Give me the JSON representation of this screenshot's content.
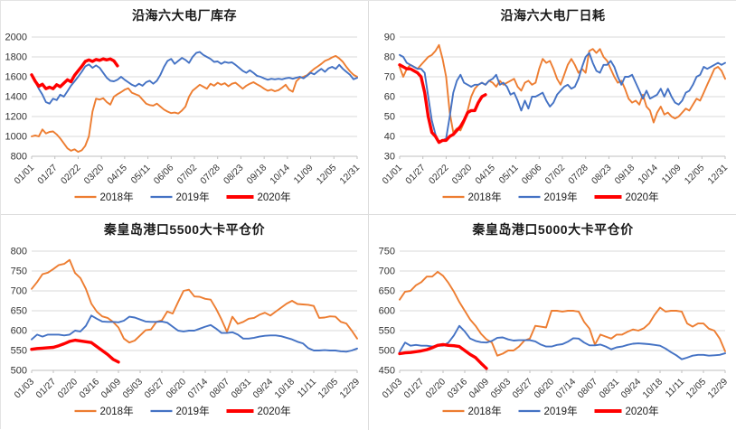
{
  "page": {
    "background": "#ffffff"
  },
  "colors": {
    "s2018": "#ED7D31",
    "s2019": "#4472C4",
    "s2020": "#FF0000",
    "gridline": "#d9d9d9",
    "axisline": "#bfbfbf",
    "axis_text": "#333333",
    "title_text": "#1a1a1a"
  },
  "chart_data": [
    {
      "type": "line",
      "title": "沿海六大电厂库存",
      "grid": true,
      "legend_position": "bottom",
      "ylim": [
        800,
        2000
      ],
      "y_step": 200,
      "x_domain": [
        0,
        364
      ],
      "x_tick_days": [
        0,
        26,
        52,
        78,
        104,
        130,
        156,
        182,
        208,
        234,
        260,
        286,
        312,
        338,
        364
      ],
      "x_tick_labels": [
        "01/01",
        "01/27",
        "02/22",
        "03/20",
        "04/15",
        "05/11",
        "06/06",
        "07/02",
        "07/28",
        "08/23",
        "09/18",
        "10/14",
        "11/09",
        "12/05",
        "12/31"
      ],
      "series": [
        {
          "name": "2018年",
          "color_key": "s2018",
          "step": 4,
          "values": [
            1000,
            1010,
            1000,
            1070,
            1030,
            1045,
            1050,
            1020,
            980,
            930,
            880,
            855,
            870,
            845,
            860,
            905,
            1000,
            1250,
            1380,
            1370,
            1385,
            1345,
            1320,
            1400,
            1425,
            1445,
            1470,
            1485,
            1440,
            1425,
            1410,
            1370,
            1330,
            1315,
            1310,
            1330,
            1300,
            1270,
            1250,
            1235,
            1240,
            1230,
            1260,
            1300,
            1400,
            1460,
            1490,
            1520,
            1500,
            1480,
            1530,
            1510,
            1540,
            1520,
            1535,
            1505,
            1530,
            1540,
            1510,
            1480,
            1510,
            1530,
            1545,
            1525,
            1505,
            1480,
            1460,
            1470,
            1455,
            1465,
            1490,
            1520,
            1470,
            1450,
            1555,
            1590,
            1600,
            1615,
            1650,
            1680,
            1705,
            1730,
            1760,
            1775,
            1795,
            1810,
            1785,
            1750,
            1700,
            1655,
            1620,
            1600
          ]
        },
        {
          "name": "2019年",
          "color_key": "s2019",
          "step": 4,
          "values": [
            1615,
            1550,
            1480,
            1420,
            1345,
            1330,
            1380,
            1365,
            1420,
            1400,
            1455,
            1510,
            1555,
            1600,
            1650,
            1705,
            1725,
            1690,
            1715,
            1690,
            1640,
            1590,
            1560,
            1555,
            1570,
            1600,
            1570,
            1545,
            1520,
            1505,
            1530,
            1510,
            1545,
            1560,
            1530,
            1560,
            1620,
            1700,
            1760,
            1780,
            1730,
            1760,
            1790,
            1770,
            1740,
            1800,
            1840,
            1850,
            1820,
            1800,
            1780,
            1750,
            1755,
            1730,
            1750,
            1740,
            1745,
            1720,
            1690,
            1660,
            1640,
            1665,
            1640,
            1610,
            1600,
            1585,
            1570,
            1580,
            1575,
            1580,
            1575,
            1585,
            1590,
            1580,
            1590,
            1600,
            1585,
            1610,
            1640,
            1625,
            1655,
            1680,
            1650,
            1685,
            1700,
            1680,
            1720,
            1680,
            1650,
            1620,
            1575,
            1590
          ]
        },
        {
          "name": "2020年",
          "color_key": "s2020",
          "step": 4,
          "thick": true,
          "values": [
            1620,
            1555,
            1505,
            1525,
            1480,
            1495,
            1480,
            1520,
            1500,
            1535,
            1570,
            1550,
            1615,
            1660,
            1705,
            1755,
            1770,
            1755,
            1775,
            1765,
            1780,
            1770,
            1780,
            1760,
            1710
          ]
        }
      ]
    },
    {
      "type": "line",
      "title": "沿海六大电厂日耗",
      "grid": true,
      "legend_position": "bottom",
      "ylim": [
        30,
        90
      ],
      "y_step": 10,
      "x_domain": [
        0,
        364
      ],
      "x_tick_days": [
        0,
        26,
        52,
        78,
        104,
        130,
        156,
        182,
        208,
        234,
        260,
        286,
        312,
        338,
        364
      ],
      "x_tick_labels": [
        "01/01",
        "01/27",
        "02/22",
        "03/20",
        "04/15",
        "05/11",
        "06/06",
        "07/02",
        "07/28",
        "08/23",
        "09/18",
        "10/14",
        "11/09",
        "12/05",
        "12/31"
      ],
      "series": [
        {
          "name": "2018年",
          "color_key": "s2018",
          "step": 4,
          "values": [
            75,
            70,
            74,
            76,
            75,
            74,
            76,
            78,
            80,
            81,
            83,
            86,
            79,
            70,
            52,
            42,
            44,
            43,
            47,
            53,
            60,
            64,
            66,
            67,
            66,
            68,
            67,
            65,
            68,
            66,
            67,
            68,
            69,
            65,
            63,
            67,
            68,
            66,
            67,
            74,
            79,
            77,
            78,
            74,
            69,
            66,
            71,
            76,
            79,
            76,
            72,
            74,
            72,
            83,
            84,
            82,
            84,
            80,
            78,
            74,
            70,
            67,
            68,
            64,
            59,
            57,
            58,
            56,
            61,
            55,
            53,
            47,
            52,
            55,
            51,
            52,
            50,
            49,
            50,
            52,
            54,
            53,
            56,
            59,
            58,
            62,
            66,
            70,
            74,
            75,
            73,
            69
          ]
        },
        {
          "name": "2019年",
          "color_key": "s2019",
          "step": 4,
          "values": [
            81,
            80,
            77,
            76,
            75,
            74,
            74,
            72,
            60,
            48,
            41,
            37,
            38,
            39,
            50,
            62,
            68,
            71,
            67,
            66,
            65,
            66,
            66,
            67,
            66,
            68,
            69,
            71,
            66,
            67,
            65,
            61,
            62,
            58,
            53,
            58,
            54,
            60,
            60,
            61,
            62,
            58,
            55,
            57,
            61,
            63,
            65,
            66,
            64,
            65,
            69,
            75,
            80,
            82,
            77,
            73,
            72,
            76,
            76,
            78,
            75,
            70,
            66,
            70,
            70,
            71,
            67,
            63,
            59,
            63,
            59,
            60,
            61,
            64,
            60,
            64,
            60,
            57,
            56,
            58,
            62,
            63,
            66,
            70,
            71,
            75,
            74,
            75,
            76,
            77,
            76,
            77
          ]
        },
        {
          "name": "2020年",
          "color_key": "s2020",
          "step": 4,
          "thick": true,
          "values": [
            76,
            75,
            74,
            74,
            73,
            72,
            70,
            62,
            50,
            42,
            40,
            37,
            38,
            38,
            40,
            41,
            43,
            45,
            48,
            52,
            53,
            53,
            57,
            60,
            61
          ]
        }
      ]
    },
    {
      "type": "line",
      "title": "秦皇岛港口5500大卡平仓价",
      "grid": true,
      "legend_position": "bottom",
      "ylim": [
        500,
        800
      ],
      "y_step": 50,
      "x_domain": [
        0,
        360
      ],
      "x_tick_days": [
        0,
        24,
        48,
        72,
        96,
        120,
        144,
        168,
        192,
        216,
        240,
        264,
        288,
        312,
        336,
        360
      ],
      "x_tick_labels": [
        "01/03",
        "01/27",
        "02/20",
        "03/16",
        "04/09",
        "05/03",
        "05/27",
        "06/20",
        "07/14",
        "08/07",
        "08/31",
        "09/24",
        "10/18",
        "11/11",
        "12/05",
        "12/29"
      ],
      "series": [
        {
          "name": "2018年",
          "color_key": "s2018",
          "step": 6,
          "values": [
            705,
            722,
            742,
            746,
            755,
            765,
            768,
            778,
            745,
            732,
            705,
            668,
            648,
            636,
            632,
            622,
            608,
            580,
            570,
            575,
            588,
            601,
            603,
            622,
            626,
            648,
            643,
            672,
            700,
            703,
            686,
            685,
            680,
            678,
            655,
            628,
            597,
            635,
            617,
            622,
            630,
            632,
            640,
            645,
            638,
            648,
            658,
            668,
            675,
            667,
            666,
            665,
            662,
            632,
            633,
            636,
            635,
            622,
            618,
            600,
            580
          ]
        },
        {
          "name": "2019年",
          "color_key": "s2019",
          "step": 6,
          "values": [
            578,
            590,
            585,
            590,
            590,
            590,
            588,
            590,
            600,
            598,
            612,
            638,
            630,
            623,
            622,
            622,
            621,
            625,
            635,
            633,
            628,
            623,
            622,
            622,
            623,
            620,
            610,
            600,
            598,
            600,
            600,
            605,
            610,
            614,
            605,
            594,
            594,
            596,
            590,
            580,
            580,
            582,
            585,
            587,
            588,
            588,
            586,
            582,
            578,
            572,
            568,
            556,
            550,
            550,
            551,
            550,
            550,
            548,
            547,
            550,
            555
          ]
        },
        {
          "name": "2020年",
          "color_key": "s2020",
          "step": 6,
          "thick": true,
          "values": [
            553,
            555,
            556,
            557,
            558,
            562,
            567,
            573,
            576,
            574,
            572,
            570,
            560,
            550,
            540,
            528,
            521
          ]
        }
      ]
    },
    {
      "type": "line",
      "title": "秦皇岛港口5000大卡平仓价",
      "grid": true,
      "legend_position": "bottom",
      "ylim": [
        450,
        750
      ],
      "y_step": 50,
      "x_domain": [
        0,
        360
      ],
      "x_tick_days": [
        0,
        24,
        48,
        72,
        96,
        120,
        144,
        168,
        192,
        216,
        240,
        264,
        288,
        312,
        336,
        360
      ],
      "x_tick_labels": [
        "01/03",
        "01/27",
        "02/20",
        "03/16",
        "04/09",
        "05/03",
        "05/27",
        "06/20",
        "07/14",
        "08/07",
        "08/31",
        "09/24",
        "10/18",
        "11/11",
        "12/05",
        "12/29"
      ],
      "series": [
        {
          "name": "2018年",
          "color_key": "s2018",
          "step": 6,
          "values": [
            628,
            648,
            650,
            664,
            672,
            686,
            686,
            698,
            688,
            670,
            648,
            622,
            600,
            578,
            562,
            542,
            528,
            520,
            487,
            492,
            500,
            500,
            510,
            525,
            530,
            562,
            560,
            558,
            600,
            600,
            598,
            600,
            600,
            598,
            572,
            555,
            515,
            540,
            535,
            530,
            540,
            540,
            547,
            553,
            550,
            556,
            568,
            590,
            608,
            598,
            600,
            600,
            598,
            568,
            560,
            568,
            568,
            555,
            550,
            530,
            498
          ]
        },
        {
          "name": "2019年",
          "color_key": "s2019",
          "step": 6,
          "values": [
            497,
            520,
            512,
            514,
            512,
            512,
            510,
            512,
            512,
            520,
            538,
            562,
            548,
            530,
            524,
            521,
            520,
            524,
            532,
            533,
            528,
            525,
            526,
            526,
            526,
            523,
            515,
            510,
            510,
            514,
            516,
            522,
            531,
            530,
            520,
            513,
            513,
            515,
            510,
            503,
            508,
            510,
            514,
            517,
            518,
            517,
            516,
            514,
            512,
            505,
            496,
            488,
            478,
            482,
            487,
            489,
            489,
            487,
            488,
            489,
            493
          ]
        },
        {
          "name": "2020年",
          "color_key": "s2020",
          "step": 6,
          "thick": true,
          "values": [
            492,
            494,
            495,
            497,
            499,
            502,
            507,
            513,
            515,
            513,
            512,
            510,
            500,
            490,
            482,
            468,
            455
          ]
        }
      ]
    }
  ]
}
